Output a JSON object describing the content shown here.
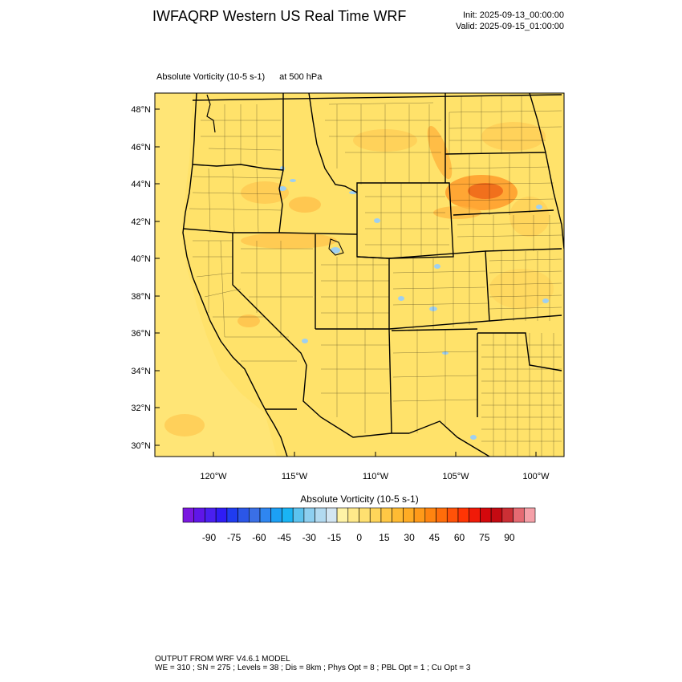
{
  "header": {
    "title": "IWFAQRP Western US Real Time WRF",
    "init": "Init: 2025-09-13_00:00:00",
    "valid": "Valid: 2025-09-15_01:00:00"
  },
  "field": {
    "name": "Absolute Vorticity   (10-5 s-1)",
    "level": "at   500 hPa"
  },
  "map": {
    "lat_labels": [
      "48°N",
      "46°N",
      "44°N",
      "42°N",
      "40°N",
      "38°N",
      "36°N",
      "34°N",
      "32°N",
      "30°N"
    ],
    "lon_labels": [
      "120°W",
      "115°W",
      "110°W",
      "105°W",
      "100°W"
    ],
    "background_color": "#ffe26a",
    "border_color": "#000000"
  },
  "colorbar": {
    "title": "Absolute Vorticity  (10-5 s-1)",
    "tick_labels": [
      "-90",
      "-75",
      "-60",
      "-45",
      "-30",
      "-15",
      "0",
      "15",
      "30",
      "45",
      "60",
      "75",
      "90"
    ],
    "colors": [
      "#7a18e0",
      "#5f16e8",
      "#4a1ff0",
      "#2f1cf5",
      "#1f3cf0",
      "#2b56e8",
      "#3a6fe6",
      "#2f86f0",
      "#1ca0f5",
      "#19b4f5",
      "#5cc3ef",
      "#8dcff0",
      "#b2daf0",
      "#d3e6f3",
      "#fff3a6",
      "#ffe98a",
      "#ffe070",
      "#ffd55a",
      "#ffc845",
      "#ffbb33",
      "#ffac24",
      "#ff9a19",
      "#ff8410",
      "#ff6d0a",
      "#ff5208",
      "#ff3504",
      "#f01a08",
      "#d4080c",
      "#c40a12",
      "#cc2f35",
      "#e56a72",
      "#f5a0a8"
    ]
  },
  "footer": {
    "line1": "OUTPUT FROM WRF V4.6.1 MODEL",
    "line2": "WE = 310 ; SN = 275 ; Levels = 38 ; Dis = 8km ; Phys Opt = 8 ; PBL Opt = 1 ; Cu Opt = 3"
  }
}
